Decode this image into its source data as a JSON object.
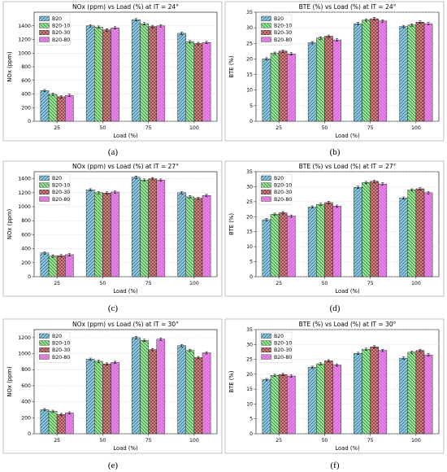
{
  "figure": {
    "series_colors": [
      "#87ceeb",
      "#90ee90",
      "#f08080",
      "#ee82ee"
    ],
    "series_hatches": [
      "diag",
      "backdiag",
      "cross",
      "dots"
    ]
  },
  "chart_data": [
    {
      "type": "bar",
      "caption": "(a)",
      "title": "NOx (ppm) vs Load (%) at IT = 24°",
      "xlabel": "Load (%)",
      "ylabel": "NOx (ppm)",
      "categories": [
        "25",
        "50",
        "75",
        "100"
      ],
      "ylim": [
        0,
        1600
      ],
      "yticks": [
        0,
        200,
        400,
        600,
        800,
        1000,
        1200,
        1400
      ],
      "legend_position": "upper-left",
      "grid": true,
      "error_bars": true,
      "series": [
        {
          "name": "B20",
          "values": [
            450,
            1400,
            1490,
            1290
          ]
        },
        {
          "name": "B20-10",
          "values": [
            395,
            1380,
            1430,
            1165
          ]
        },
        {
          "name": "B20-30",
          "values": [
            360,
            1340,
            1390,
            1140
          ]
        },
        {
          "name": "B20-80",
          "values": [
            380,
            1370,
            1400,
            1155
          ]
        }
      ]
    },
    {
      "type": "bar",
      "caption": "(b)",
      "title": "BTE (%) vs Load (%) at IT = 24°",
      "xlabel": "Load (%)",
      "ylabel": "BTE (%)",
      "categories": [
        "25",
        "50",
        "75",
        "100"
      ],
      "ylim": [
        0,
        35
      ],
      "yticks": [
        0,
        5,
        10,
        15,
        20,
        25,
        30,
        35
      ],
      "legend_position": "upper-left",
      "grid": true,
      "error_bars": true,
      "series": [
        {
          "name": "B20",
          "values": [
            20.0,
            25.2,
            31.3,
            30.4
          ]
        },
        {
          "name": "B20-10",
          "values": [
            21.8,
            26.7,
            32.5,
            30.9
          ]
        },
        {
          "name": "B20-30",
          "values": [
            22.5,
            27.3,
            32.9,
            31.8
          ]
        },
        {
          "name": "B20-80",
          "values": [
            21.6,
            26.1,
            32.2,
            31.3
          ]
        }
      ]
    },
    {
      "type": "bar",
      "caption": "(c)",
      "title": "NOx (ppm) vs Load (%) at IT = 27°",
      "xlabel": "Load (%)",
      "ylabel": "NOx (ppm)",
      "categories": [
        "25",
        "50",
        "75",
        "100"
      ],
      "ylim": [
        0,
        1500
      ],
      "yticks": [
        0,
        200,
        400,
        600,
        800,
        1000,
        1200,
        1400
      ],
      "legend_position": "upper-left",
      "grid": true,
      "error_bars": true,
      "series": [
        {
          "name": "B20",
          "values": [
            340,
            1240,
            1420,
            1200
          ]
        },
        {
          "name": "B20-10",
          "values": [
            295,
            1200,
            1380,
            1140
          ]
        },
        {
          "name": "B20-30",
          "values": [
            300,
            1195,
            1400,
            1120
          ]
        },
        {
          "name": "B20-80",
          "values": [
            315,
            1210,
            1380,
            1160
          ]
        }
      ]
    },
    {
      "type": "bar",
      "caption": "(d)",
      "title": "BTE (%) vs Load (%) at IT = 27°",
      "xlabel": "Load (%)",
      "ylabel": "BTE (%)",
      "categories": [
        "25",
        "50",
        "75",
        "100"
      ],
      "ylim": [
        0,
        35
      ],
      "yticks": [
        0,
        5,
        10,
        15,
        20,
        25,
        30,
        35
      ],
      "legend_position": "upper-left",
      "grid": true,
      "error_bars": true,
      "series": [
        {
          "name": "B20",
          "values": [
            19.0,
            23.2,
            29.8,
            26.2
          ]
        },
        {
          "name": "B20-10",
          "values": [
            20.8,
            24.1,
            31.4,
            28.9
          ]
        },
        {
          "name": "B20-30",
          "values": [
            21.3,
            24.7,
            31.8,
            29.3
          ]
        },
        {
          "name": "B20-80",
          "values": [
            20.2,
            23.5,
            30.9,
            28.0
          ]
        }
      ]
    },
    {
      "type": "bar",
      "caption": "(e)",
      "title": "NOx (ppm) vs Load (%) at IT = 30°",
      "xlabel": "Load (%)",
      "ylabel": "NOx (ppm)",
      "categories": [
        "25",
        "50",
        "75",
        "100"
      ],
      "ylim": [
        0,
        1300
      ],
      "yticks": [
        0,
        200,
        400,
        600,
        800,
        1000,
        1200
      ],
      "legend_position": "upper-left",
      "grid": true,
      "error_bars": true,
      "series": [
        {
          "name": "B20",
          "values": [
            300,
            930,
            1200,
            1100
          ]
        },
        {
          "name": "B20-10",
          "values": [
            280,
            905,
            1165,
            1040
          ]
        },
        {
          "name": "B20-30",
          "values": [
            240,
            870,
            1050,
            950
          ]
        },
        {
          "name": "B20-80",
          "values": [
            260,
            890,
            1180,
            1010
          ]
        }
      ]
    },
    {
      "type": "bar",
      "caption": "(f)",
      "title": "BTE (%) vs Load (%) at IT = 30°",
      "xlabel": "Load (%)",
      "ylabel": "BTE (%)",
      "categories": [
        "25",
        "50",
        "75",
        "100"
      ],
      "ylim": [
        0,
        35
      ],
      "yticks": [
        0,
        5,
        10,
        15,
        20,
        25,
        30,
        35
      ],
      "legend_position": "upper-left",
      "grid": true,
      "error_bars": true,
      "series": [
        {
          "name": "B20",
          "values": [
            18.2,
            22.3,
            27.0,
            25.4
          ]
        },
        {
          "name": "B20-10",
          "values": [
            19.6,
            23.5,
            28.4,
            27.4
          ]
        },
        {
          "name": "B20-30",
          "values": [
            19.9,
            24.5,
            29.2,
            28.0
          ]
        },
        {
          "name": "B20-80",
          "values": [
            19.4,
            23.1,
            28.0,
            26.5
          ]
        }
      ]
    }
  ]
}
